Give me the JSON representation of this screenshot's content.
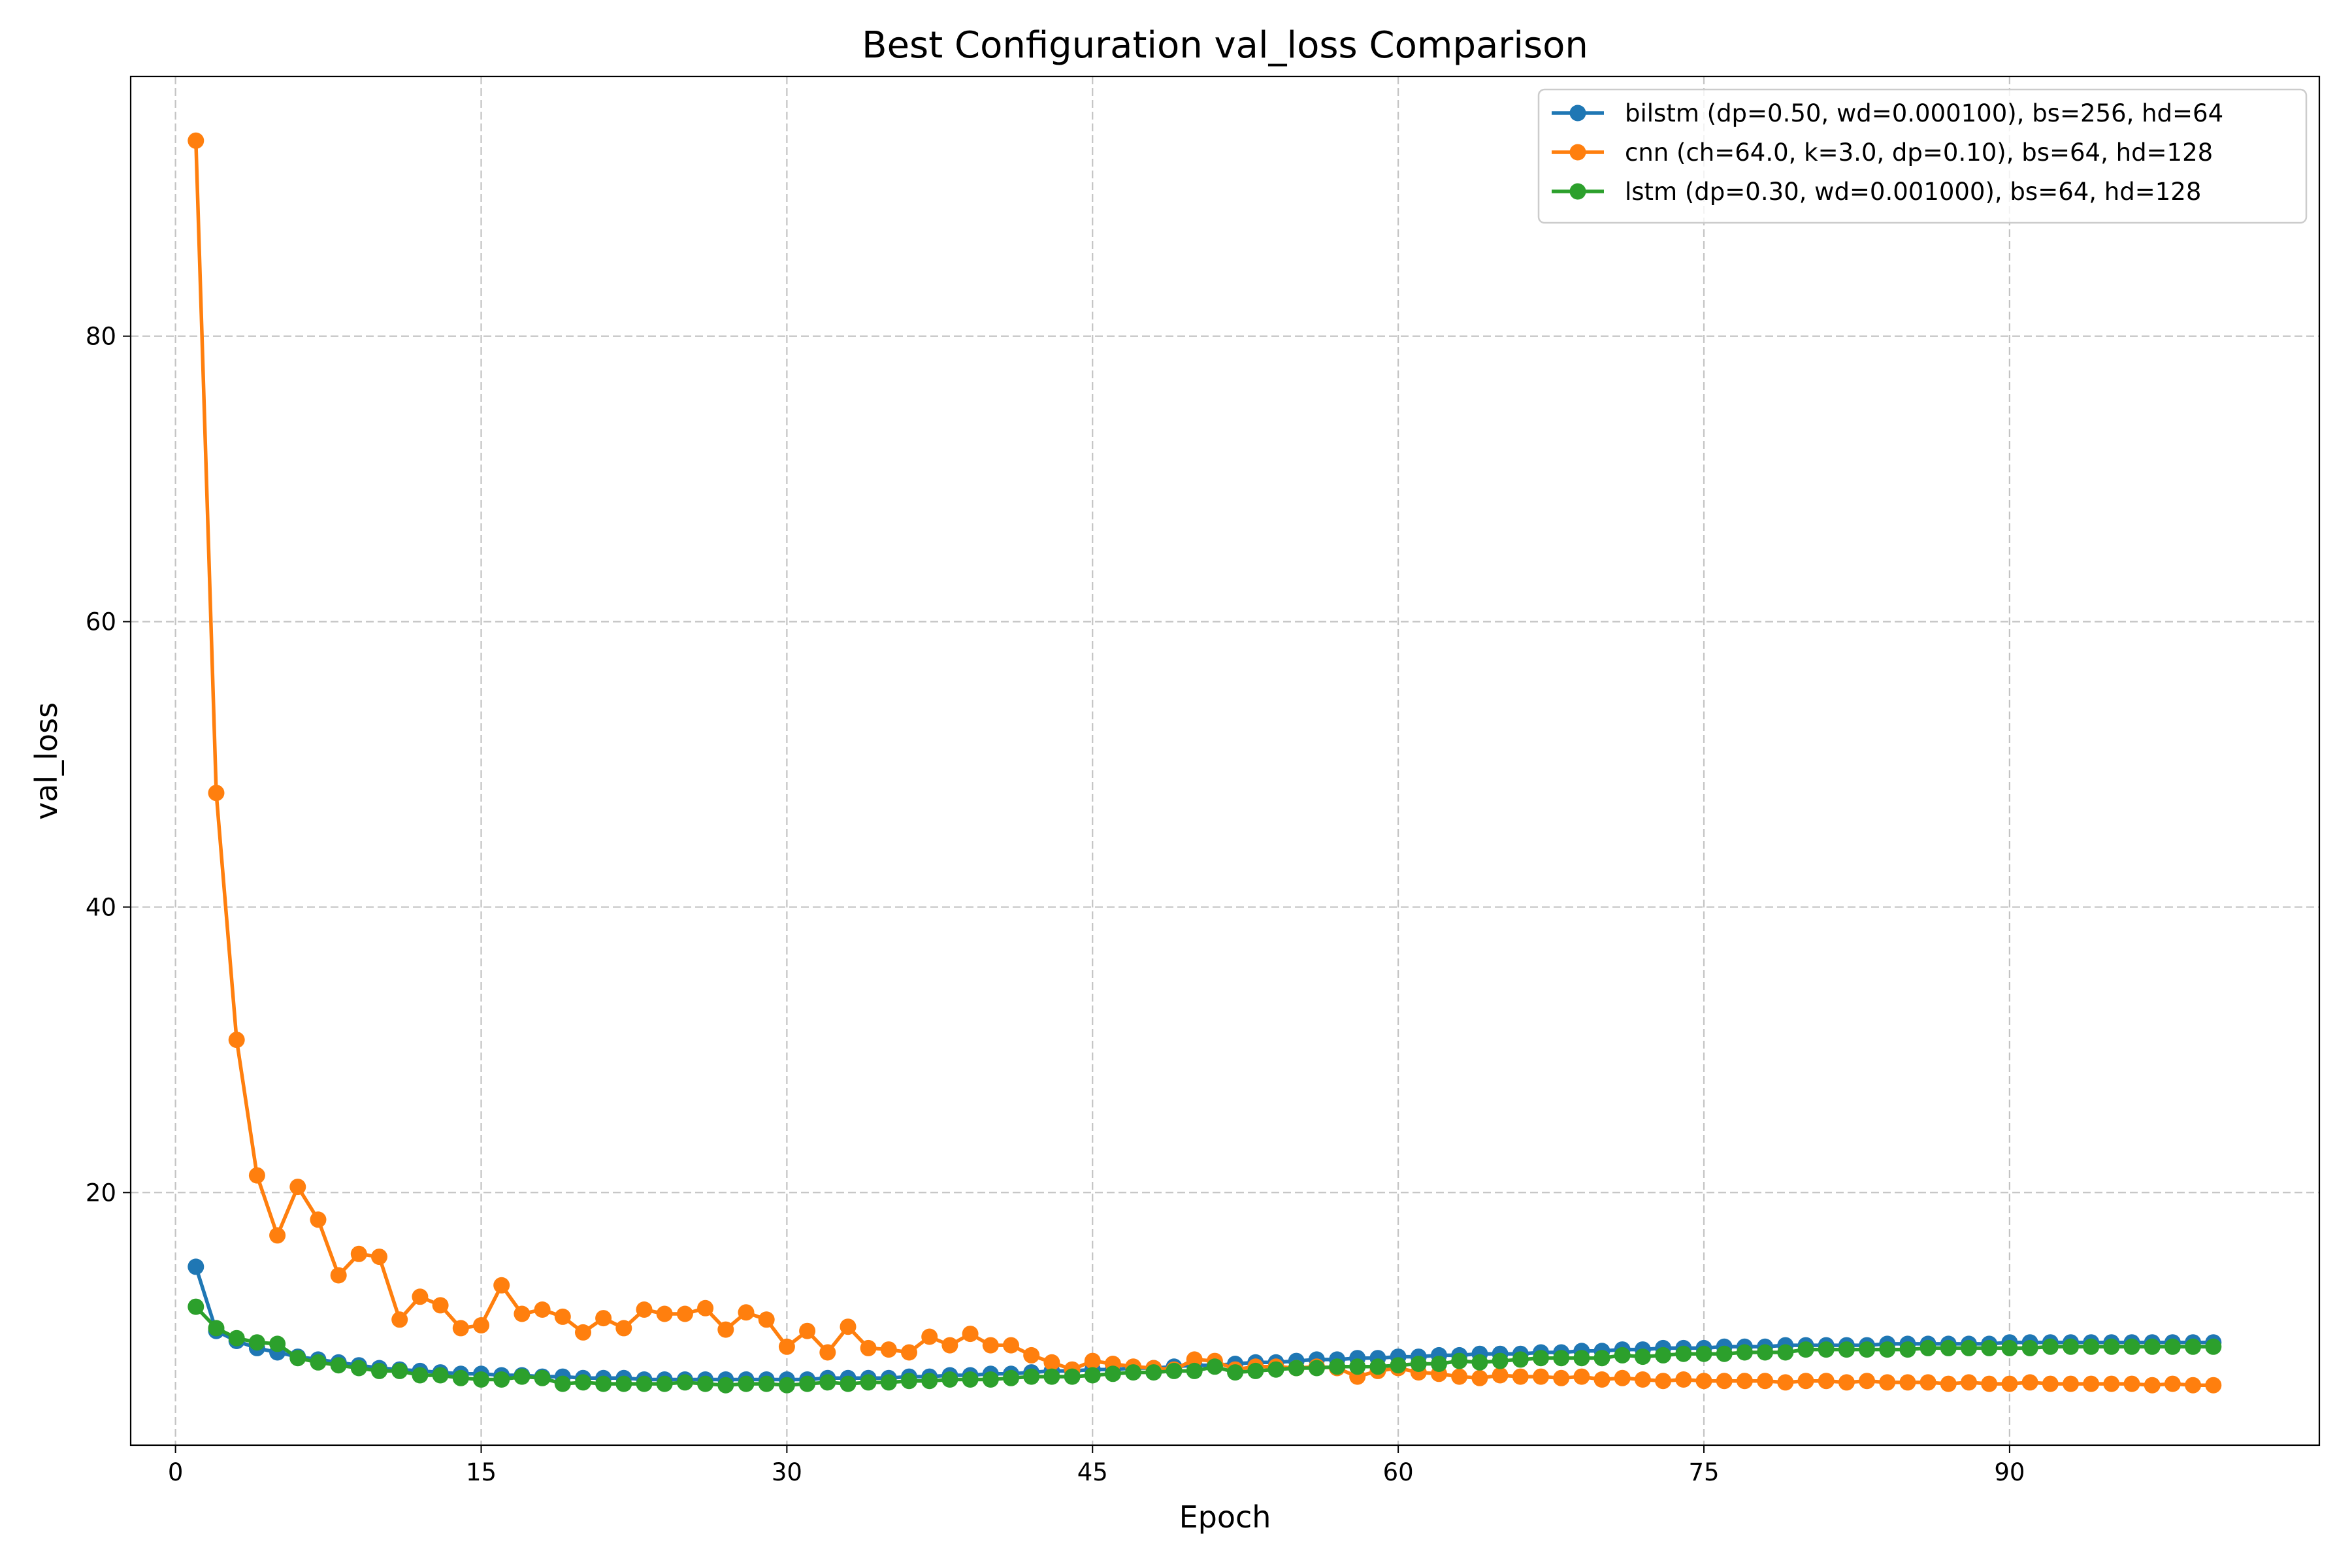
{
  "chart_data": {
    "type": "line",
    "title": "Best Configuration val_loss Comparison",
    "xlabel": "Epoch",
    "ylabel": "val_loss",
    "xlim": [
      -2.2,
      105.2
    ],
    "ylim": [
      2.3,
      98.2
    ],
    "xticks": [
      0,
      15,
      30,
      45,
      60,
      75,
      90
    ],
    "yticks": [
      20,
      40,
      60,
      80
    ],
    "grid": true,
    "legend_position": "top-right",
    "markers": true,
    "x": [
      1,
      2,
      3,
      4,
      5,
      6,
      7,
      8,
      9,
      10,
      11,
      12,
      13,
      14,
      15,
      16,
      17,
      18,
      19,
      20,
      21,
      22,
      23,
      24,
      25,
      26,
      27,
      28,
      29,
      30,
      31,
      32,
      33,
      34,
      35,
      36,
      37,
      38,
      39,
      40,
      41,
      42,
      43,
      44,
      45,
      46,
      47,
      48,
      49,
      50,
      51,
      52,
      53,
      54,
      55,
      56,
      57,
      58,
      59,
      60,
      61,
      62,
      63,
      64,
      65,
      66,
      67,
      68,
      69,
      70,
      71,
      72,
      73,
      74,
      75,
      76,
      77,
      78,
      79,
      80,
      81,
      82,
      83,
      84,
      85,
      86,
      87,
      88,
      89,
      90,
      91,
      92,
      93,
      94,
      95,
      96,
      97,
      98,
      99,
      100
    ],
    "series": [
      {
        "name": "bilstm (dp=0.50, wd=0.000100), bs=256, hd=64",
        "color": "#1f77b4",
        "values": [
          14.8,
          10.3,
          9.6,
          9.1,
          8.8,
          8.5,
          8.3,
          8.1,
          7.9,
          7.7,
          7.6,
          7.5,
          7.4,
          7.3,
          7.3,
          7.2,
          7.2,
          7.1,
          7.1,
          7.0,
          7.0,
          7.0,
          6.9,
          6.9,
          6.9,
          6.9,
          6.9,
          6.9,
          6.9,
          6.9,
          6.9,
          7.0,
          7.0,
          7.0,
          7.0,
          7.1,
          7.1,
          7.2,
          7.2,
          7.3,
          7.3,
          7.4,
          7.5,
          7.5,
          7.6,
          7.6,
          7.7,
          7.7,
          7.8,
          7.9,
          7.9,
          8.0,
          8.1,
          8.1,
          8.2,
          8.3,
          8.3,
          8.4,
          8.4,
          8.5,
          8.5,
          8.6,
          8.6,
          8.7,
          8.7,
          8.7,
          8.8,
          8.8,
          8.9,
          8.9,
          9.0,
          9.0,
          9.1,
          9.1,
          9.1,
          9.2,
          9.2,
          9.2,
          9.3,
          9.3,
          9.3,
          9.3,
          9.3,
          9.4,
          9.4,
          9.4,
          9.4,
          9.4,
          9.4,
          9.5,
          9.5,
          9.5,
          9.5,
          9.5,
          9.5,
          9.5,
          9.5,
          9.5,
          9.5,
          9.5
        ]
      },
      {
        "name": "cnn (ch=64.0, k=3.0, dp=0.10), bs=64, hd=128",
        "color": "#ff7f0e",
        "values": [
          93.7,
          48.0,
          30.7,
          21.2,
          17.0,
          20.4,
          18.1,
          14.2,
          15.7,
          15.5,
          11.1,
          12.7,
          12.1,
          10.5,
          10.7,
          13.5,
          11.5,
          11.8,
          11.3,
          10.2,
          11.2,
          10.5,
          11.8,
          11.5,
          11.5,
          11.9,
          10.4,
          11.6,
          11.1,
          9.2,
          10.3,
          8.8,
          10.6,
          9.1,
          9.0,
          8.8,
          9.9,
          9.3,
          10.1,
          9.3,
          9.3,
          8.6,
          8.1,
          7.6,
          8.2,
          8.0,
          7.8,
          7.7,
          7.6,
          8.3,
          8.2,
          7.6,
          7.8,
          7.8,
          7.7,
          7.8,
          7.7,
          7.1,
          7.5,
          7.7,
          7.4,
          7.3,
          7.1,
          7.0,
          7.2,
          7.1,
          7.1,
          7.0,
          7.1,
          6.9,
          7.0,
          6.9,
          6.8,
          6.9,
          6.8,
          6.8,
          6.8,
          6.8,
          6.7,
          6.8,
          6.8,
          6.7,
          6.8,
          6.7,
          6.7,
          6.7,
          6.6,
          6.7,
          6.6,
          6.6,
          6.7,
          6.6,
          6.6,
          6.6,
          6.6,
          6.6,
          6.5,
          6.6,
          6.5,
          6.5
        ]
      },
      {
        "name": "lstm (dp=0.30, wd=0.001000), bs=64, hd=128",
        "color": "#2ca02c",
        "values": [
          12.0,
          10.5,
          9.8,
          9.5,
          9.4,
          8.4,
          8.1,
          7.9,
          7.7,
          7.5,
          7.5,
          7.2,
          7.2,
          7.0,
          6.9,
          6.9,
          7.1,
          7.0,
          6.6,
          6.7,
          6.6,
          6.6,
          6.6,
          6.6,
          6.7,
          6.6,
          6.5,
          6.6,
          6.6,
          6.5,
          6.6,
          6.7,
          6.6,
          6.7,
          6.7,
          6.8,
          6.8,
          6.9,
          6.9,
          6.9,
          7.0,
          7.1,
          7.1,
          7.1,
          7.2,
          7.3,
          7.4,
          7.4,
          7.5,
          7.5,
          7.8,
          7.4,
          7.5,
          7.6,
          7.7,
          7.7,
          7.8,
          7.8,
          7.8,
          7.9,
          8.0,
          8.0,
          8.2,
          8.1,
          8.2,
          8.3,
          8.4,
          8.4,
          8.4,
          8.4,
          8.6,
          8.5,
          8.6,
          8.7,
          8.7,
          8.7,
          8.8,
          8.8,
          8.8,
          9.0,
          9.0,
          9.0,
          9.0,
          9.0,
          9.0,
          9.1,
          9.1,
          9.1,
          9.1,
          9.1,
          9.1,
          9.2,
          9.2,
          9.2,
          9.2,
          9.2,
          9.2,
          9.2,
          9.2,
          9.2
        ]
      }
    ]
  }
}
